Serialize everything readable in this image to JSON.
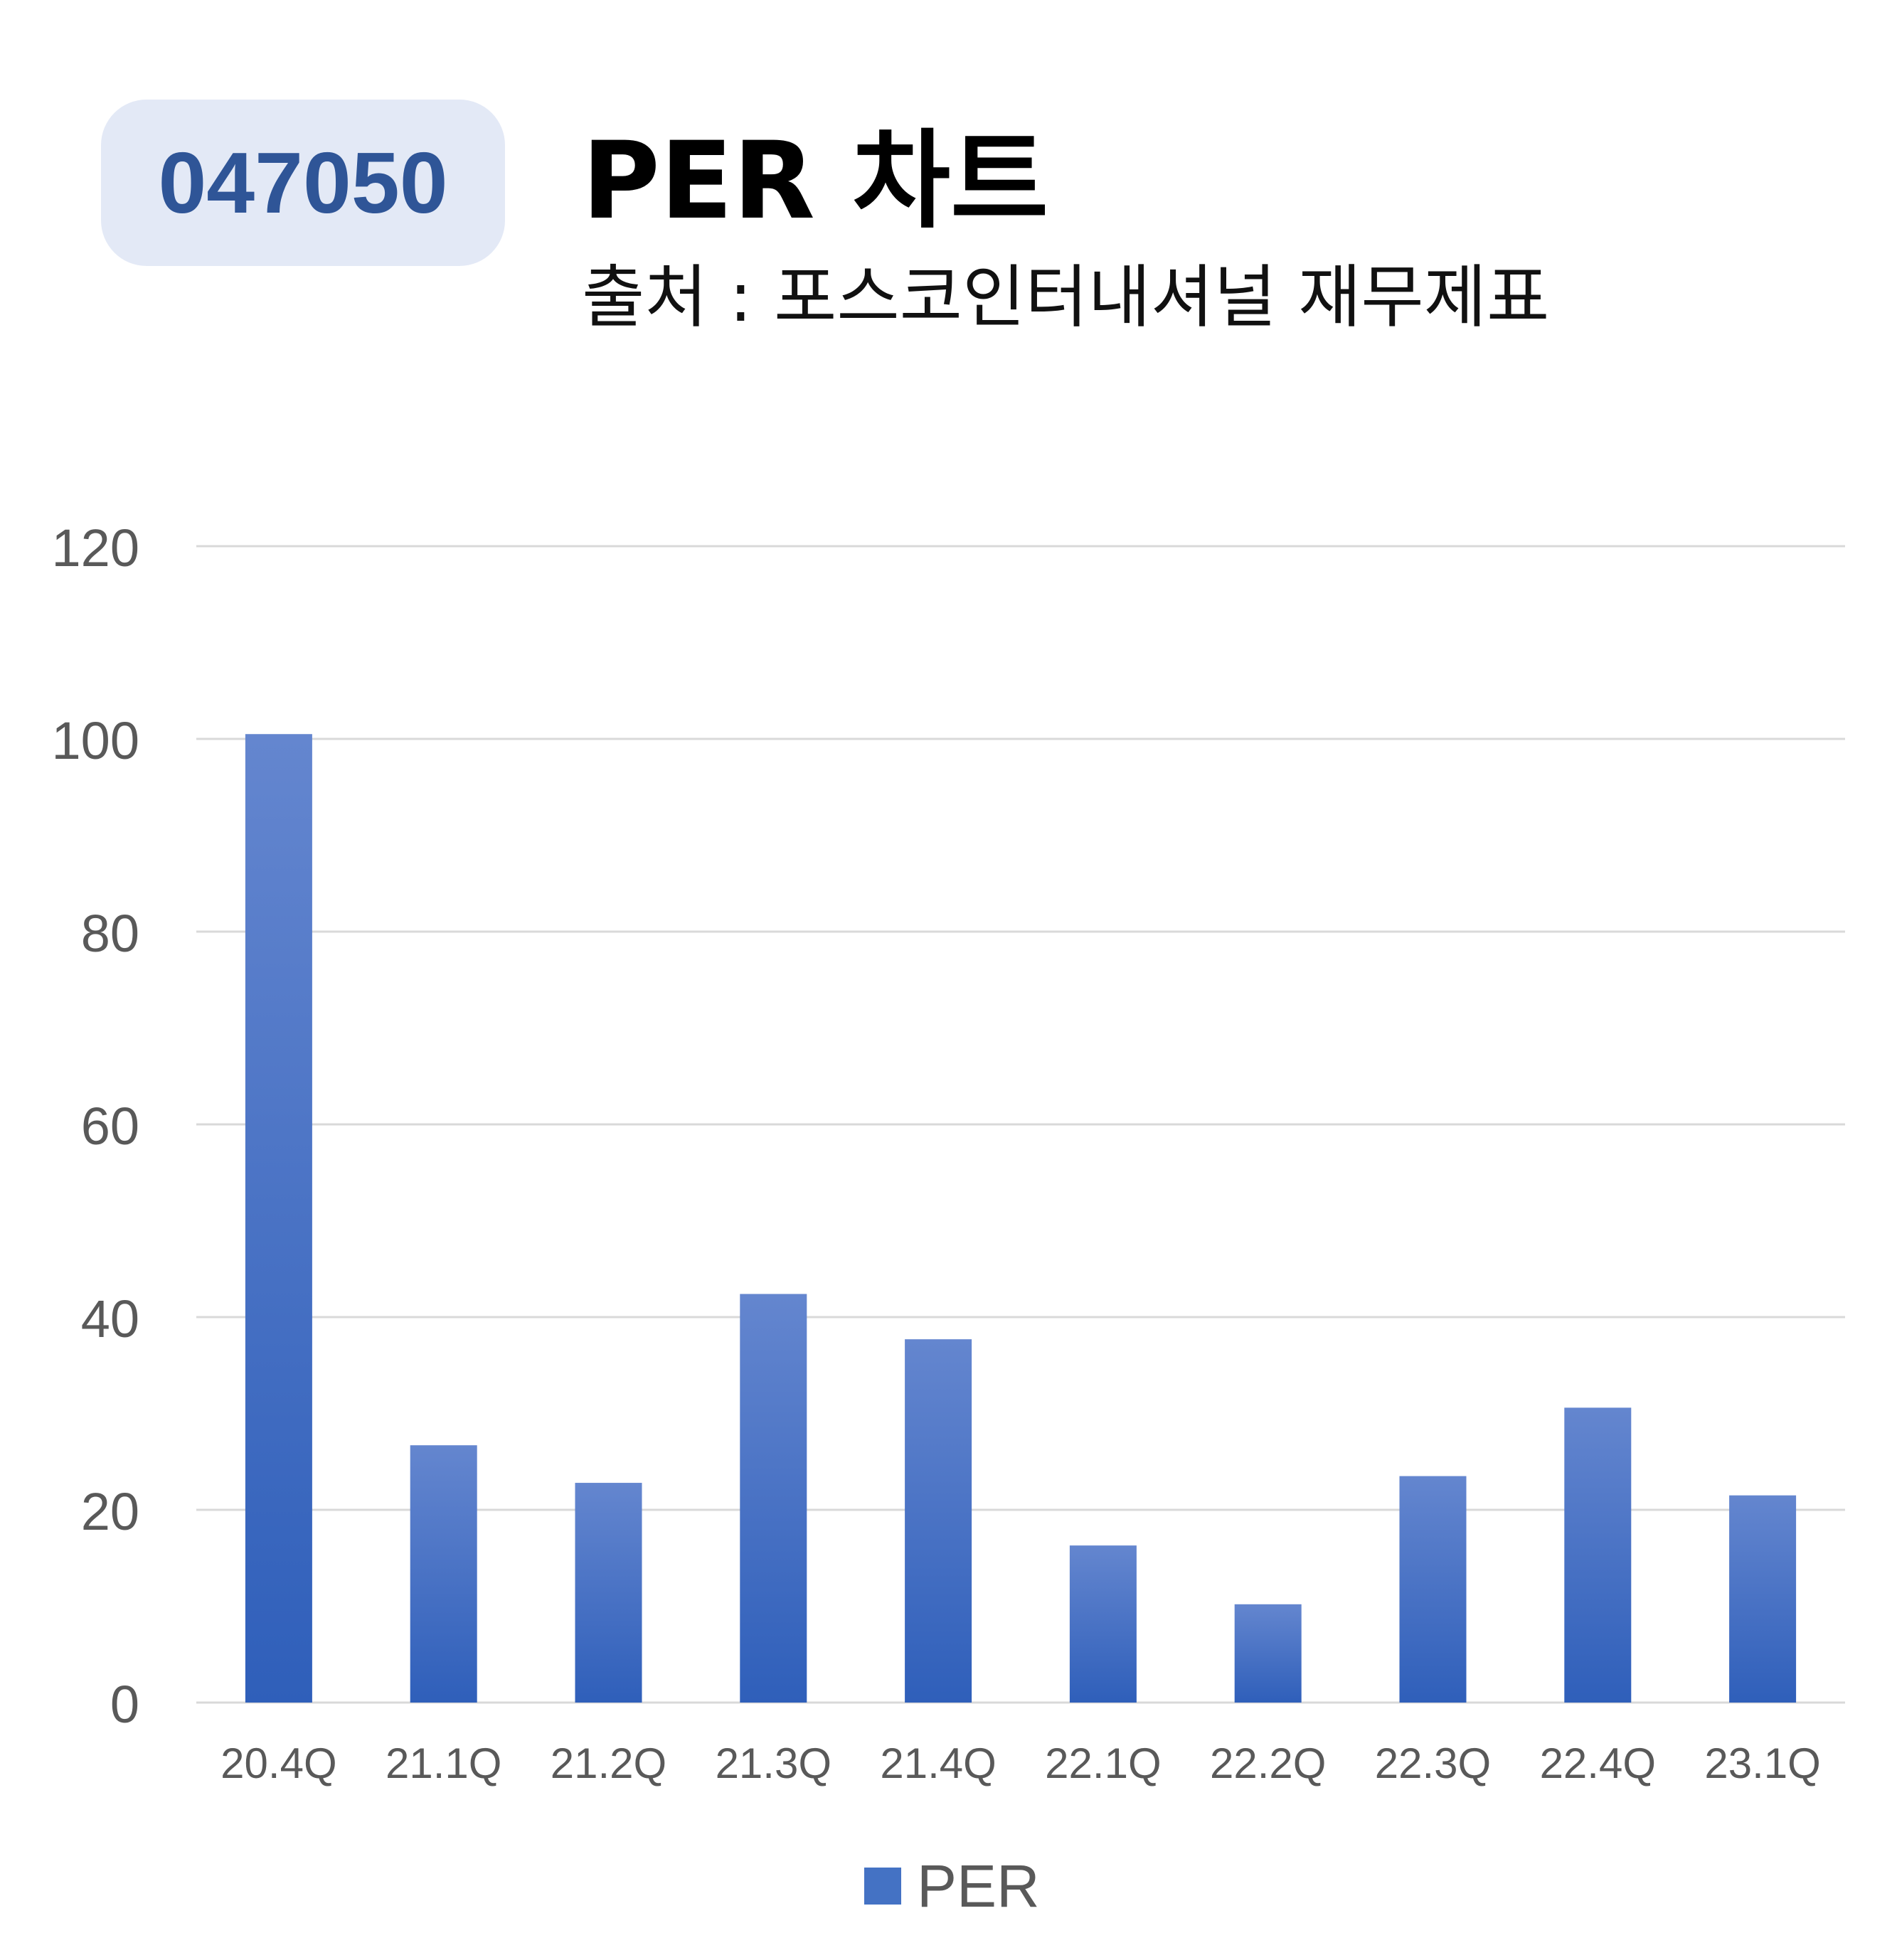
{
  "header": {
    "ticker": "047050",
    "title": "PER 차트",
    "source": "출처 : 포스코인터내셔널 재무제표"
  },
  "colors": {
    "bar_top": "#6486cf",
    "bar_bottom": "#2f5fba",
    "grid": "#d9d9d9",
    "axis_text": "#595959",
    "badge_bg": "#e3e9f6",
    "badge_text": "#2f5597"
  },
  "chart_data": {
    "type": "bar",
    "title": "PER 차트",
    "categories": [
      "20.4Q",
      "21.1Q",
      "21.2Q",
      "21.3Q",
      "21.4Q",
      "22.1Q",
      "22.2Q",
      "22.3Q",
      "22.4Q",
      "23.1Q"
    ],
    "series": [
      {
        "name": "PER",
        "values": [
          100.5,
          26.7,
          22.8,
          42.4,
          37.7,
          16.3,
          10.2,
          23.5,
          30.6,
          21.5
        ]
      }
    ],
    "ylim": [
      0,
      120
    ],
    "yticks": [
      "0",
      "20",
      "40",
      "60",
      "80",
      "100",
      "120"
    ],
    "grid": true,
    "legend_position": "bottom"
  }
}
